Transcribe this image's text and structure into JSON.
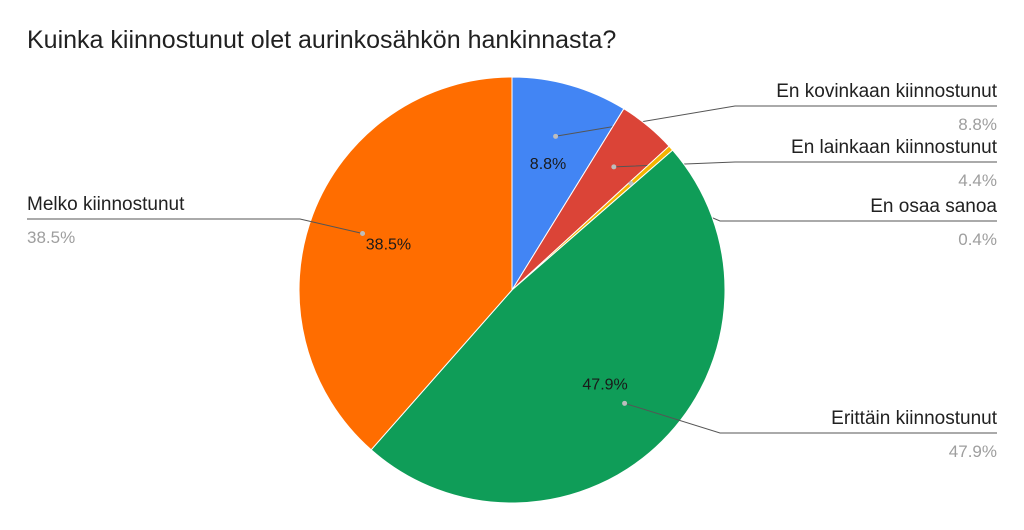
{
  "chart_data": {
    "type": "pie",
    "title": "Kuinka kiinnostunut olet aurinkosähkön hankinnasta?",
    "slices": [
      {
        "label": "En kovinkaan kiinnostunut",
        "value": 8.8,
        "display": "8.8%",
        "color": "#4285f4"
      },
      {
        "label": "En lainkaan kiinnostunut",
        "value": 4.4,
        "display": "4.4%",
        "color": "#db4437"
      },
      {
        "label": "En osaa sanoa",
        "value": 0.4,
        "display": "0.4%",
        "color": "#f4b400"
      },
      {
        "label": "Erittäin kiinnostunut",
        "value": 47.9,
        "display": "47.9%",
        "color": "#0f9d58"
      },
      {
        "label": "Melko kiinnostunut",
        "value": 38.5,
        "display": "38.5%",
        "color": "#ff6d00"
      }
    ],
    "inner_labels_shown_for": [
      "En kovinkaan kiinnostunut",
      "Erittäin kiinnostunut",
      "Melko kiinnostunut"
    ],
    "legend": "callouts"
  }
}
